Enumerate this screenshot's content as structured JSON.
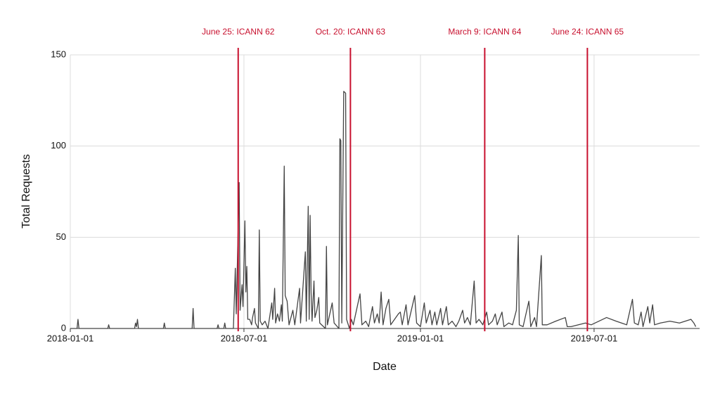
{
  "chart_data": {
    "type": "line",
    "xlabel": "Date",
    "ylabel": "Total Requests",
    "x": [
      "2018-01-01",
      "2018-01-08",
      "2018-01-09",
      "2018-01-10",
      "2018-02-09",
      "2018-02-10",
      "2018-02-11",
      "2018-03-09",
      "2018-03-10",
      "2018-03-11",
      "2018-03-12",
      "2018-03-13",
      "2018-04-08",
      "2018-04-09",
      "2018-04-10",
      "2018-05-08",
      "2018-05-09",
      "2018-05-10",
      "2018-06-03",
      "2018-06-04",
      "2018-06-05",
      "2018-06-10",
      "2018-06-11",
      "2018-06-12",
      "2018-06-20",
      "2018-06-22",
      "2018-06-23",
      "2018-06-26",
      "2018-06-27",
      "2018-06-29",
      "2018-06-30",
      "2018-07-02",
      "2018-07-03",
      "2018-07-04",
      "2018-07-05",
      "2018-07-07",
      "2018-07-09",
      "2018-07-10",
      "2018-07-12",
      "2018-07-13",
      "2018-07-16",
      "2018-07-17",
      "2018-07-18",
      "2018-07-20",
      "2018-07-23",
      "2018-07-26",
      "2018-07-30",
      "2018-07-31",
      "2018-08-02",
      "2018-08-03",
      "2018-08-05",
      "2018-08-07",
      "2018-08-09",
      "2018-08-10",
      "2018-08-12",
      "2018-08-13",
      "2018-08-15",
      "2018-08-17",
      "2018-08-21",
      "2018-08-23",
      "2018-08-28",
      "2018-08-29",
      "2018-09-03",
      "2018-09-04",
      "2018-09-06",
      "2018-09-07",
      "2018-09-08",
      "2018-09-09",
      "2018-09-10",
      "2018-09-12",
      "2018-09-13",
      "2018-09-15",
      "2018-09-17",
      "2018-09-18",
      "2018-09-24",
      "2018-09-25",
      "2018-09-26",
      "2018-10-01",
      "2018-10-03",
      "2018-10-08",
      "2018-10-09",
      "2018-10-10",
      "2018-10-11",
      "2018-10-13",
      "2018-10-15",
      "2018-10-16",
      "2018-10-19",
      "2018-10-21",
      "2018-10-23",
      "2018-10-30",
      "2018-11-01",
      "2018-11-05",
      "2018-11-08",
      "2018-11-12",
      "2018-11-14",
      "2018-11-17",
      "2018-11-19",
      "2018-11-21",
      "2018-11-23",
      "2018-11-26",
      "2018-11-29",
      "2018-12-01",
      "2018-12-05",
      "2018-12-09",
      "2018-12-11",
      "2018-12-13",
      "2018-12-17",
      "2018-12-19",
      "2018-12-26",
      "2018-12-28",
      "2019-01-01",
      "2019-01-05",
      "2019-01-07",
      "2019-01-11",
      "2019-01-13",
      "2019-01-16",
      "2019-01-18",
      "2019-01-22",
      "2019-01-24",
      "2019-01-28",
      "2019-01-30",
      "2019-02-03",
      "2019-02-07",
      "2019-02-10",
      "2019-02-14",
      "2019-02-16",
      "2019-02-19",
      "2019-02-22",
      "2019-02-26",
      "2019-02-28",
      "2019-03-03",
      "2019-03-07",
      "2019-03-11",
      "2019-03-13",
      "2019-03-17",
      "2019-03-20",
      "2019-03-22",
      "2019-03-27",
      "2019-03-29",
      "2019-04-03",
      "2019-04-07",
      "2019-04-11",
      "2019-04-13",
      "2019-04-14",
      "2019-04-18",
      "2019-04-24",
      "2019-04-26",
      "2019-04-30",
      "2019-05-02",
      "2019-05-07",
      "2019-05-08",
      "2019-05-13",
      "2019-05-22",
      "2019-06-01",
      "2019-06-03",
      "2019-06-07",
      "2019-06-22",
      "2019-06-28",
      "2019-07-14",
      "2019-07-24",
      "2019-08-04",
      "2019-08-10",
      "2019-08-12",
      "2019-08-16",
      "2019-08-19",
      "2019-08-21",
      "2019-08-26",
      "2019-08-28",
      "2019-08-31",
      "2019-09-02",
      "2019-09-08",
      "2019-09-18",
      "2019-09-28",
      "2019-10-10",
      "2019-10-13",
      "2019-10-15"
    ],
    "values": [
      0,
      0,
      5,
      0,
      0,
      2,
      0,
      0,
      3,
      1,
      5,
      0,
      0,
      3,
      0,
      0,
      11,
      0,
      0,
      2,
      0,
      0,
      3,
      0,
      0,
      33,
      8,
      80,
      10,
      24,
      12,
      59,
      20,
      34,
      5,
      5,
      2,
      6,
      11,
      3,
      0,
      54,
      4,
      2,
      4,
      0,
      14,
      5,
      22,
      3,
      8,
      4,
      13,
      4,
      89,
      18,
      15,
      2,
      10,
      2,
      22,
      3,
      42,
      4,
      67,
      5,
      62,
      20,
      4,
      26,
      6,
      10,
      17,
      3,
      0,
      45,
      2,
      14,
      3,
      0,
      104,
      103,
      3,
      130,
      129,
      5,
      0,
      5,
      2,
      19,
      2,
      4,
      1,
      12,
      3,
      8,
      3,
      20,
      2,
      11,
      16,
      2,
      5,
      8,
      9,
      2,
      13,
      2,
      18,
      3,
      1,
      14,
      3,
      10,
      2,
      9,
      2,
      11,
      2,
      12,
      2,
      4,
      1,
      4,
      10,
      3,
      6,
      2,
      26,
      3,
      5,
      2,
      9,
      2,
      4,
      8,
      2,
      9,
      1,
      3,
      2,
      10,
      51,
      2,
      1,
      15,
      1,
      6,
      1,
      40,
      2,
      2,
      4,
      6,
      1,
      1,
      3,
      2,
      6,
      4,
      2,
      16,
      3,
      2,
      9,
      1,
      12,
      3,
      13,
      2,
      3,
      4,
      3,
      5,
      3,
      1
    ],
    "color": "#444444",
    "xlim": [
      "2018-01-01",
      "2019-10-19"
    ],
    "xticks": [
      "2018-01-01",
      "2018-07-01",
      "2019-01-01",
      "2019-07-01"
    ],
    "ylim": [
      0,
      150
    ],
    "yticks": [
      0,
      50,
      100,
      150
    ],
    "grid": true,
    "annotation_color": "#c8102e",
    "annotations": [
      {
        "x": "2018-06-25",
        "label": "June 25: ICANN 62"
      },
      {
        "x": "2018-10-20",
        "label": "Oct. 20: ICANN 63"
      },
      {
        "x": "2019-03-09",
        "label": "March 9: ICANN 64"
      },
      {
        "x": "2019-06-24",
        "label": "June 24: ICANN 65"
      }
    ]
  }
}
